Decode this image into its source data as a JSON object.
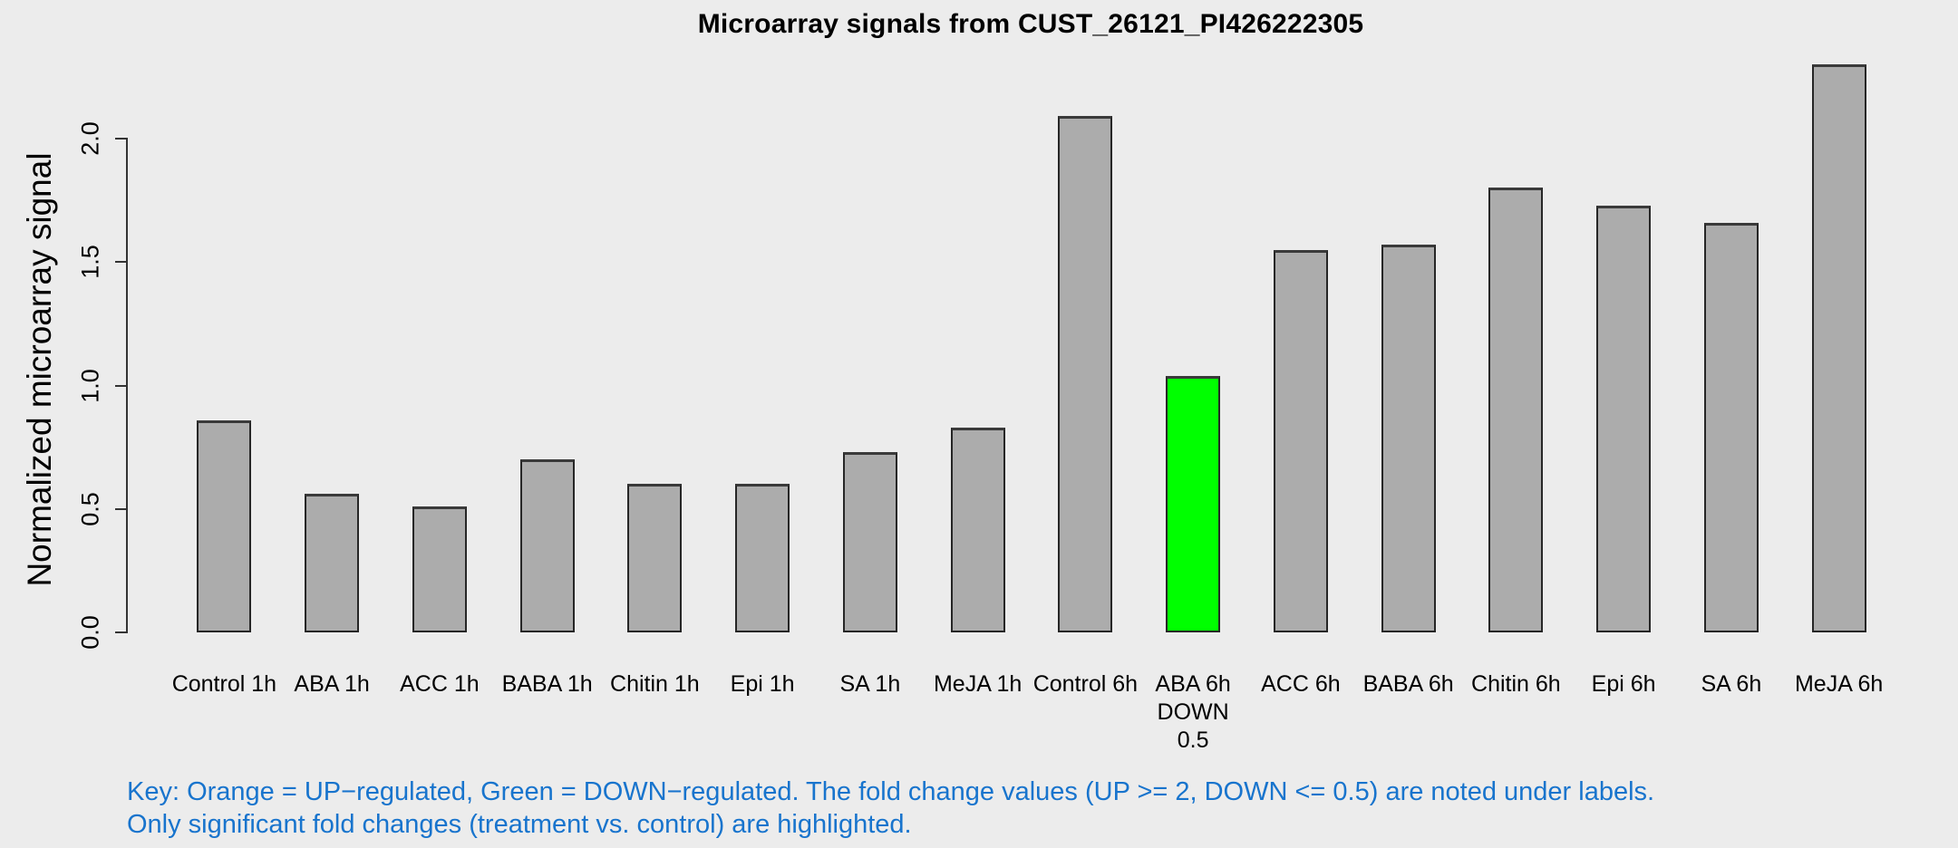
{
  "title": "Microarray signals from CUST_26121_PI426222305",
  "colors": {
    "background": "#ECECEC",
    "bar_fill": "#ACACAC",
    "bar_border": "#262626",
    "axis": "#333333",
    "down_regulated": "#00FF00",
    "up_regulated": "#FFA500",
    "key_text": "#1874CD"
  },
  "key_note": {
    "line1": "Key: Orange = UP−regulated, Green = DOWN−regulated. The fold change values (UP >= 2, DOWN <= 0.5) are noted under labels.",
    "line2": "Only significant fold changes (treatment vs. control) are highlighted."
  },
  "chart_data": {
    "type": "bar",
    "title": "Microarray signals from CUST_26121_PI426222305",
    "xlabel": "",
    "ylabel": "Normalized microarray signal",
    "ylim": [
      0,
      2.3
    ],
    "yticks": [
      0.0,
      0.5,
      1.0,
      1.5,
      2.0
    ],
    "grid": false,
    "legend": "none",
    "categories": [
      "Control 1h",
      "ABA 1h",
      "ACC 1h",
      "BABA 1h",
      "Chitin 1h",
      "Epi 1h",
      "SA 1h",
      "MeJA 1h",
      "Control 6h",
      "ABA 6h",
      "ACC 6h",
      "BABA 6h",
      "Chitin 6h",
      "Epi 6h",
      "SA 6h",
      "MeJA 6h"
    ],
    "values": [
      0.86,
      0.56,
      0.51,
      0.7,
      0.6,
      0.6,
      0.73,
      0.83,
      2.09,
      1.04,
      1.55,
      1.57,
      1.8,
      1.73,
      1.66,
      2.3
    ],
    "bars": [
      {
        "label": "Control 1h",
        "value": 0.86
      },
      {
        "label": "ABA 1h",
        "value": 0.56
      },
      {
        "label": "ACC 1h",
        "value": 0.51
      },
      {
        "label": "BABA 1h",
        "value": 0.7
      },
      {
        "label": "Chitin 1h",
        "value": 0.6
      },
      {
        "label": "Epi 1h",
        "value": 0.6
      },
      {
        "label": "SA 1h",
        "value": 0.73
      },
      {
        "label": "MeJA 1h",
        "value": 0.83
      },
      {
        "label": "Control 6h",
        "value": 2.09
      },
      {
        "label": "ABA 6h",
        "value": 1.04,
        "highlight": "down",
        "sublabel": [
          "DOWN",
          "0.5"
        ]
      },
      {
        "label": "ACC 6h",
        "value": 1.55
      },
      {
        "label": "BABA 6h",
        "value": 1.57
      },
      {
        "label": "Chitin 6h",
        "value": 1.8
      },
      {
        "label": "Epi 6h",
        "value": 1.73
      },
      {
        "label": "SA 6h",
        "value": 1.66
      },
      {
        "label": "MeJA 6h",
        "value": 2.3
      }
    ]
  }
}
